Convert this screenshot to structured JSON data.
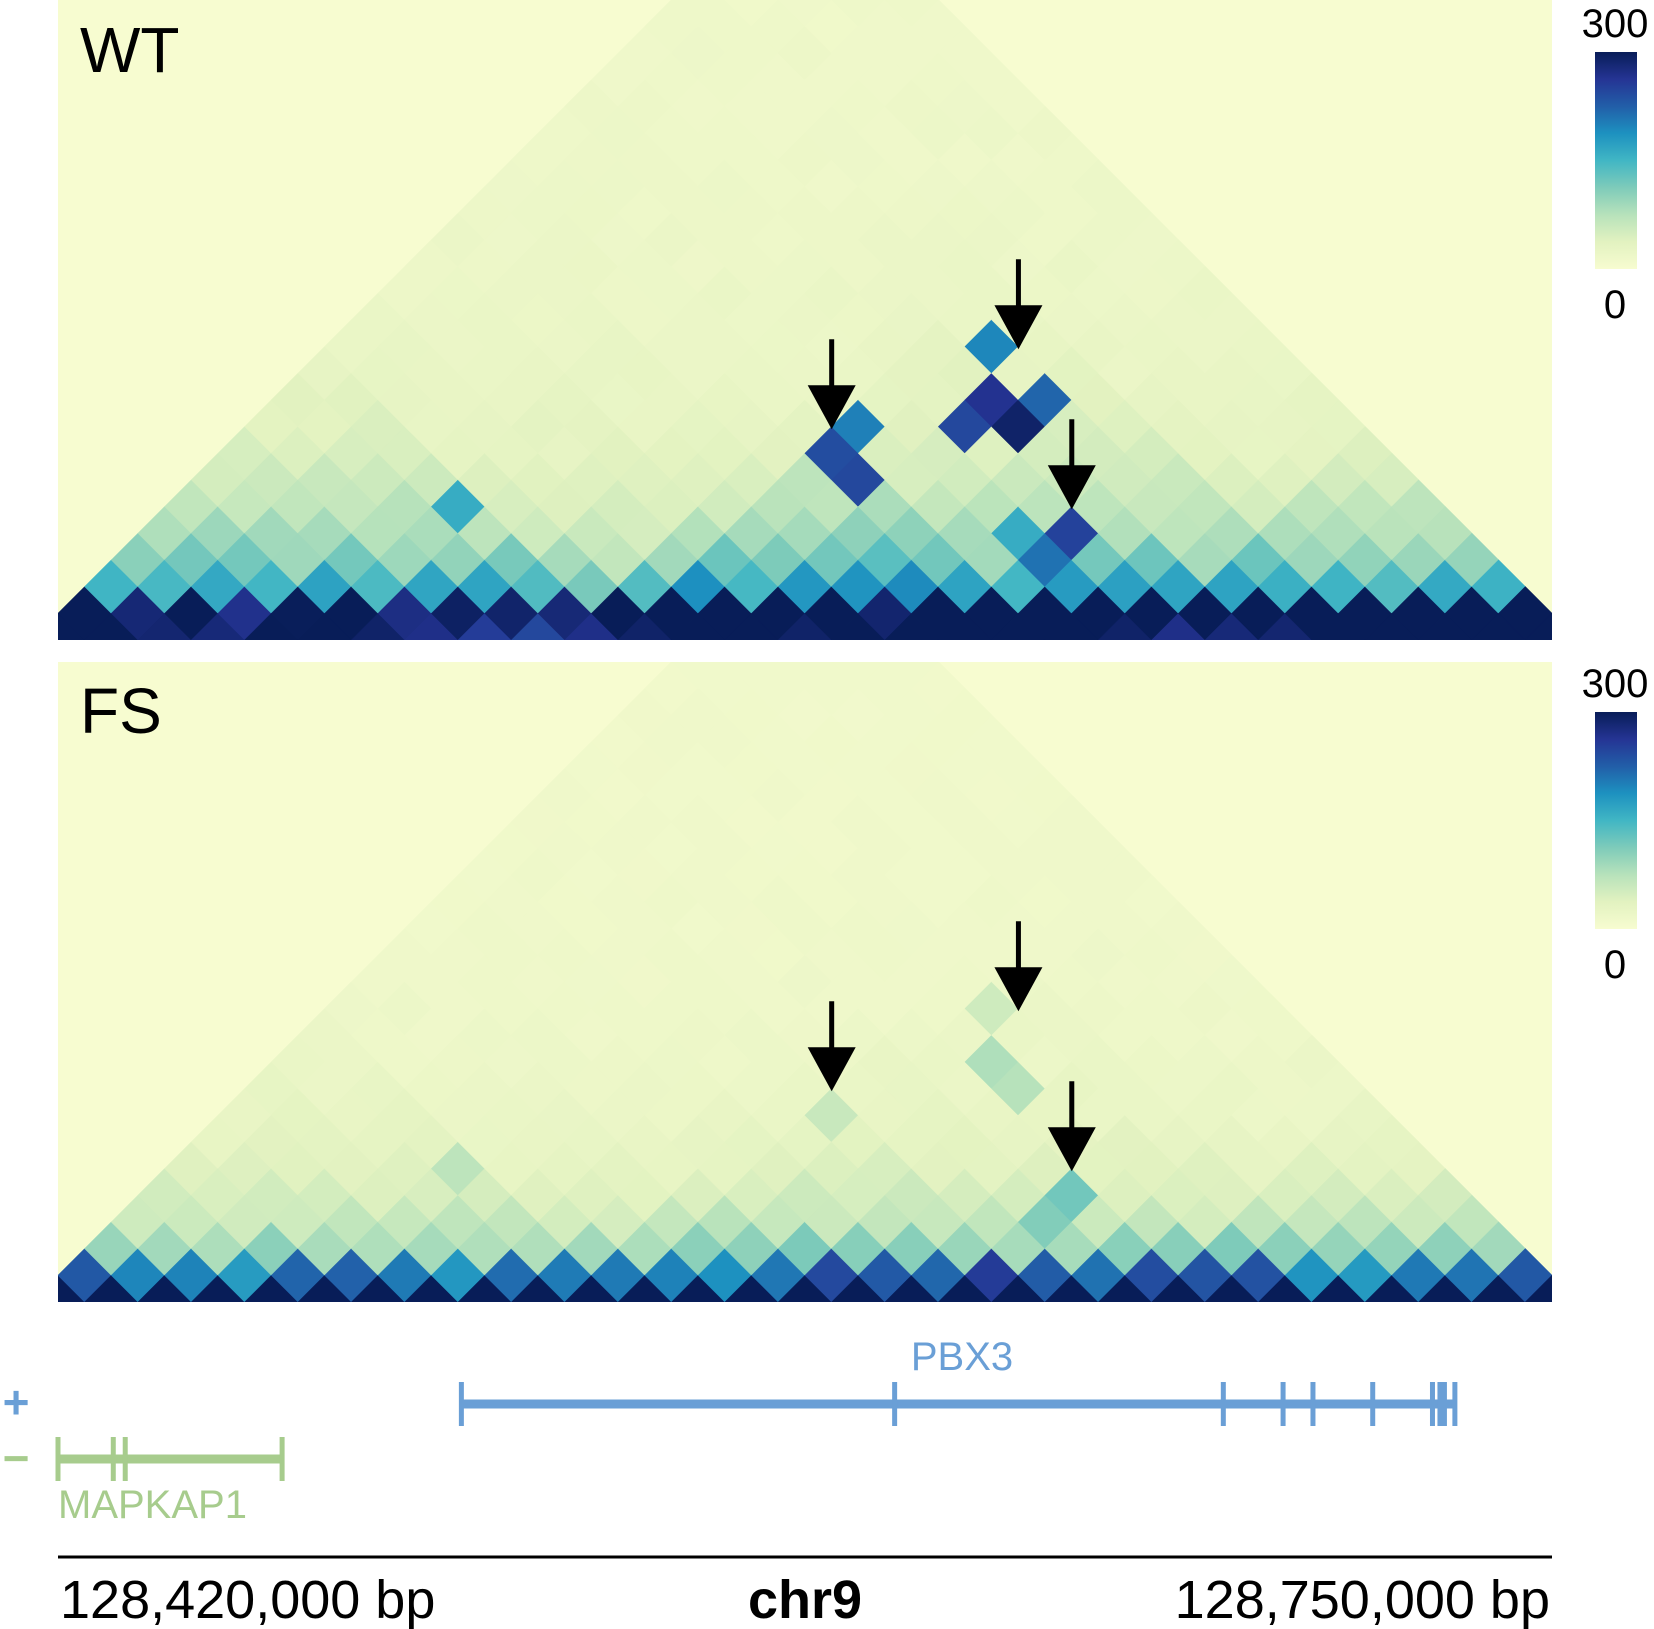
{
  "chart_data": {
    "type": "heatmap",
    "subtype": "triangular Hi-C contact map",
    "chromosome": "chr9",
    "x_start_label": "128,420,000 bp",
    "x_end_label": "128,750,000 bp",
    "colorscale": {
      "min_label": "0",
      "max_label": "300",
      "stops": [
        "#f7fcd0",
        "#e2f2c0",
        "#b7e2bb",
        "#7ecbba",
        "#41b6c4",
        "#1d91c0",
        "#225ea8",
        "#253494",
        "#081d58"
      ]
    },
    "bins_on_diagonal": 29,
    "panels": [
      {
        "label": "WT",
        "peaks": [
          {
            "i": 5,
            "j": 10,
            "value": 160
          },
          {
            "i": 11,
            "j": 18,
            "value": 240
          },
          {
            "i": 12,
            "j": 18,
            "value": 245
          },
          {
            "i": 11,
            "j": 19,
            "value": 200
          },
          {
            "i": 13,
            "j": 22,
            "value": 265
          },
          {
            "i": 14,
            "j": 22,
            "value": 290
          },
          {
            "i": 13,
            "j": 21,
            "value": 245
          },
          {
            "i": 14,
            "j": 23,
            "value": 220
          },
          {
            "i": 12,
            "j": 23,
            "value": 195
          },
          {
            "i": 17,
            "j": 21,
            "value": 250
          },
          {
            "i": 17,
            "j": 20,
            "value": 210
          },
          {
            "i": 16,
            "j": 20,
            "value": 160
          }
        ],
        "arrows": [
          {
            "i": 11,
            "j": 18
          },
          {
            "i": 13,
            "j": 23
          },
          {
            "i": 17,
            "j": 21
          }
        ]
      },
      {
        "label": "FS",
        "peaks": [
          {
            "i": 5,
            "j": 10,
            "value": 70
          },
          {
            "i": 11,
            "j": 18,
            "value": 60
          },
          {
            "i": 13,
            "j": 22,
            "value": 80
          },
          {
            "i": 14,
            "j": 22,
            "value": 75
          },
          {
            "i": 12,
            "j": 23,
            "value": 55
          },
          {
            "i": 17,
            "j": 21,
            "value": 120
          },
          {
            "i": 17,
            "j": 20,
            "value": 110
          }
        ],
        "arrows": [
          {
            "i": 11,
            "j": 18
          },
          {
            "i": 13,
            "j": 23
          },
          {
            "i": 17,
            "j": 21
          }
        ]
      }
    ],
    "genes": [
      {
        "name": "PBX3",
        "strand": "+",
        "color": "#6a9fd6",
        "start_frac": 0.27,
        "end_frac": 0.935,
        "exons_frac": [
          0.27,
          0.56,
          0.78,
          0.82,
          0.84,
          0.88,
          0.92,
          0.925,
          0.928,
          0.935
        ]
      },
      {
        "name": "MAPKAP1",
        "strand": "−",
        "color": "#a7cc8d",
        "start_frac": 0.0,
        "end_frac": 0.15,
        "exons_frac": [
          0.0,
          0.037,
          0.045,
          0.15
        ]
      }
    ],
    "strand_labels": [
      {
        "symbol": "+",
        "color": "#6a9fd6"
      },
      {
        "symbol": "−",
        "color": "#a7cc8d"
      }
    ]
  }
}
